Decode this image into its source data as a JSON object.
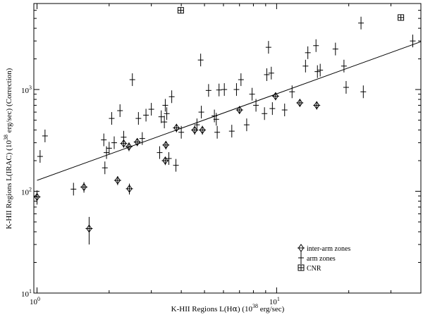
{
  "chart_data": {
    "type": "scatter",
    "x_scale": "log",
    "y_scale": "log",
    "xlim": [
      0.97,
      40
    ],
    "ylim": [
      10,
      7000
    ],
    "xlabel": {
      "prefix": "K-HII Regions L(H",
      "symbol": "α",
      "middle": ") (10",
      "exp": "38",
      "suffix": " erg/sec)"
    },
    "ylabel": {
      "prefix": "K-HII Regions L(IRAC) (10",
      "exp": "38",
      "suffix": " erg/sec) (Correction)"
    },
    "x_ticks": [
      {
        "value": 1,
        "base": "10",
        "exp": "0"
      },
      {
        "value": 10,
        "base": "10",
        "exp": "1"
      }
    ],
    "y_ticks": [
      {
        "value": 10,
        "base": "10",
        "exp": "1"
      },
      {
        "value": 100,
        "base": "10",
        "exp": "2"
      },
      {
        "value": 1000,
        "base": "10",
        "exp": "3"
      }
    ],
    "legend": {
      "placement": "bottom-right",
      "entries": [
        {
          "marker": "diamond",
          "label": "inter-arm zones"
        },
        {
          "marker": "plus",
          "label": "arm zones"
        },
        {
          "marker": "boxplus",
          "label": "CNR"
        }
      ]
    },
    "fit_line": {
      "x": [
        1.0,
        40.0
      ],
      "y": [
        128,
        2950
      ]
    },
    "series": [
      {
        "marker": "diamond",
        "points": [
          {
            "x": 1.0,
            "y": 88,
            "ey": 14
          },
          {
            "x": 1.57,
            "y": 110,
            "ey": 13
          },
          {
            "x": 1.65,
            "y": 43,
            "ey": 13
          },
          {
            "x": 2.17,
            "y": 128,
            "ey": 13
          },
          {
            "x": 2.3,
            "y": 295,
            "ey": 27
          },
          {
            "x": 2.42,
            "y": 275,
            "ey": 27
          },
          {
            "x": 2.43,
            "y": 106,
            "ey": 13
          },
          {
            "x": 2.62,
            "y": 305,
            "ey": 27
          },
          {
            "x": 3.43,
            "y": 200,
            "ey": 19
          },
          {
            "x": 3.45,
            "y": 285,
            "ey": 27
          },
          {
            "x": 3.82,
            "y": 420,
            "ey": 40
          },
          {
            "x": 4.55,
            "y": 400,
            "ey": 40
          },
          {
            "x": 4.9,
            "y": 400,
            "ey": 40
          },
          {
            "x": 7.0,
            "y": 630,
            "ey": 55
          },
          {
            "x": 9.9,
            "y": 860,
            "ey": 75
          },
          {
            "x": 12.5,
            "y": 740,
            "ey": 65
          },
          {
            "x": 14.7,
            "y": 700,
            "ey": 65
          }
        ]
      },
      {
        "marker": "plus",
        "points": [
          {
            "x": 1.03,
            "y": 220
          },
          {
            "x": 1.08,
            "y": 350
          },
          {
            "x": 1.42,
            "y": 105
          },
          {
            "x": 1.9,
            "y": 320
          },
          {
            "x": 1.92,
            "y": 170
          },
          {
            "x": 1.95,
            "y": 240
          },
          {
            "x": 2.0,
            "y": 265
          },
          {
            "x": 2.05,
            "y": 520
          },
          {
            "x": 2.1,
            "y": 300
          },
          {
            "x": 2.22,
            "y": 620
          },
          {
            "x": 2.3,
            "y": 340
          },
          {
            "x": 2.5,
            "y": 1250
          },
          {
            "x": 2.65,
            "y": 520
          },
          {
            "x": 2.75,
            "y": 330
          },
          {
            "x": 2.85,
            "y": 560
          },
          {
            "x": 3.0,
            "y": 640
          },
          {
            "x": 3.25,
            "y": 240
          },
          {
            "x": 3.3,
            "y": 540
          },
          {
            "x": 3.4,
            "y": 480
          },
          {
            "x": 3.43,
            "y": 700
          },
          {
            "x": 3.48,
            "y": 580
          },
          {
            "x": 3.55,
            "y": 210
          },
          {
            "x": 3.65,
            "y": 850
          },
          {
            "x": 3.8,
            "y": 180
          },
          {
            "x": 4.0,
            "y": 380
          },
          {
            "x": 4.65,
            "y": 450
          },
          {
            "x": 4.82,
            "y": 1950
          },
          {
            "x": 4.85,
            "y": 600
          },
          {
            "x": 5.2,
            "y": 980
          },
          {
            "x": 5.5,
            "y": 550
          },
          {
            "x": 5.6,
            "y": 510
          },
          {
            "x": 5.65,
            "y": 380
          },
          {
            "x": 5.75,
            "y": 990
          },
          {
            "x": 6.05,
            "y": 1000
          },
          {
            "x": 6.5,
            "y": 390
          },
          {
            "x": 6.8,
            "y": 1000
          },
          {
            "x": 7.1,
            "y": 1250
          },
          {
            "x": 7.5,
            "y": 450
          },
          {
            "x": 7.9,
            "y": 900
          },
          {
            "x": 8.2,
            "y": 700
          },
          {
            "x": 8.9,
            "y": 580
          },
          {
            "x": 9.1,
            "y": 1400
          },
          {
            "x": 9.25,
            "y": 2600
          },
          {
            "x": 9.5,
            "y": 1450
          },
          {
            "x": 9.6,
            "y": 650
          },
          {
            "x": 10.8,
            "y": 630
          },
          {
            "x": 11.6,
            "y": 950
          },
          {
            "x": 13.2,
            "y": 1700
          },
          {
            "x": 13.5,
            "y": 2300
          },
          {
            "x": 14.6,
            "y": 2700
          },
          {
            "x": 14.8,
            "y": 1500
          },
          {
            "x": 15.2,
            "y": 1550
          },
          {
            "x": 17.6,
            "y": 2500
          },
          {
            "x": 19.1,
            "y": 1700
          },
          {
            "x": 19.5,
            "y": 1050
          },
          {
            "x": 22.5,
            "y": 4500
          },
          {
            "x": 23.0,
            "y": 950
          },
          {
            "x": 37.0,
            "y": 3000
          }
        ]
      },
      {
        "marker": "boxplus",
        "points": [
          {
            "x": 3.98,
            "y": 6000
          },
          {
            "x": 33.0,
            "y": 5100
          }
        ]
      }
    ]
  }
}
